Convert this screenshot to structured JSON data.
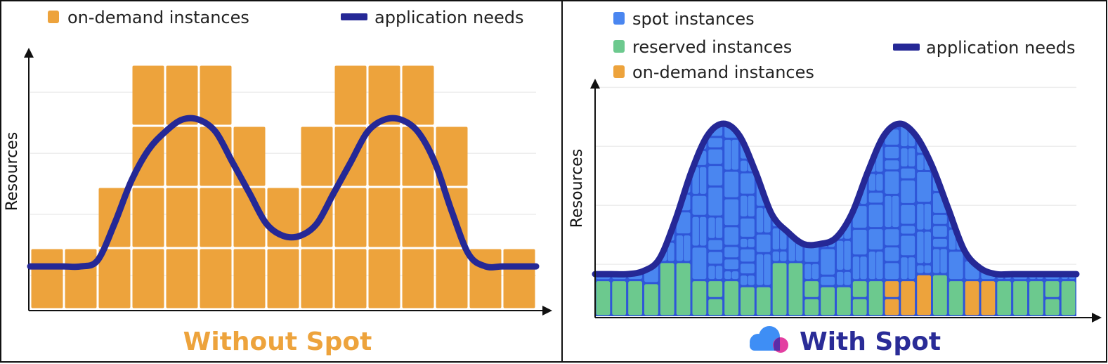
{
  "colors": {
    "on_demand": "#EDA33C",
    "spot": "#4A86F0",
    "spot_dark": "#2F56D8",
    "reserved": "#6CC98E",
    "need_line": "#252896",
    "caption_left": "#EDA33C",
    "caption_right": "#2A2C97",
    "logo_blue": "#3E8EF5",
    "logo_pink": "#E2359C",
    "logo_purple": "#5A2DA8"
  },
  "icons": {
    "spot_logo": "cloud-logo-icon"
  },
  "chart_data": [
    {
      "type": "bar",
      "caption": "Without Spot",
      "ylabel": "Resources",
      "xlabel": "",
      "grid": true,
      "legend_position": "top",
      "legend": [
        {
          "name": "on-demand instances",
          "kind": "swatch",
          "color_key": "on_demand"
        },
        {
          "name": "application needs",
          "kind": "line",
          "color_key": "need_line"
        }
      ],
      "ylim": [
        0,
        4
      ],
      "xlim": [
        0,
        15
      ],
      "series": [
        {
          "name": "on-demand instances",
          "type": "stacked-units",
          "values": [
            1,
            1,
            2,
            4,
            4,
            4,
            3,
            2,
            3,
            4,
            4,
            4,
            3,
            1,
            1
          ]
        },
        {
          "name": "application needs",
          "type": "line",
          "x": [
            0,
            0.5,
            1,
            1.5,
            2,
            2.5,
            3,
            3.5,
            4,
            4.5,
            5,
            5.5,
            6,
            6.5,
            7,
            7.5,
            8,
            8.5,
            9,
            9.5,
            10,
            10.5,
            11,
            11.5,
            12,
            12.5,
            13,
            13.5,
            14,
            14.5,
            15
          ],
          "values": [
            0.7,
            0.7,
            0.7,
            0.7,
            0.8,
            1.4,
            2.1,
            2.6,
            2.9,
            3.1,
            3.1,
            2.9,
            2.4,
            1.9,
            1.4,
            1.2,
            1.2,
            1.4,
            1.9,
            2.4,
            2.9,
            3.1,
            3.1,
            2.9,
            2.4,
            1.6,
            0.9,
            0.7,
            0.7,
            0.7,
            0.7
          ]
        }
      ]
    },
    {
      "type": "area",
      "caption": "With Spot",
      "ylabel": "Resources",
      "xlabel": "",
      "grid": true,
      "legend_position": "top",
      "legend": [
        {
          "name": "spot instances",
          "kind": "swatch",
          "color_key": "spot"
        },
        {
          "name": "reserved instances",
          "kind": "swatch",
          "color_key": "reserved"
        },
        {
          "name": "on-demand instances",
          "kind": "swatch",
          "color_key": "on_demand"
        },
        {
          "name": "application needs",
          "kind": "line",
          "color_key": "need_line"
        }
      ],
      "ylim": [
        0,
        4.2
      ],
      "xlim": [
        0,
        30
      ],
      "series": [
        {
          "name": "application needs",
          "type": "line",
          "x": [
            0,
            1,
            2,
            3,
            4,
            5,
            6,
            7,
            8,
            9,
            10,
            11,
            12,
            13,
            14,
            15,
            16,
            17,
            18,
            19,
            20,
            21,
            22,
            23,
            24,
            25,
            26,
            27,
            28,
            29,
            30
          ],
          "values": [
            0.7,
            0.7,
            0.7,
            0.75,
            0.95,
            1.6,
            2.4,
            3.0,
            3.2,
            3.0,
            2.4,
            1.7,
            1.4,
            1.2,
            1.2,
            1.3,
            1.7,
            2.4,
            3.0,
            3.2,
            3.0,
            2.5,
            1.8,
            1.1,
            0.8,
            0.7,
            0.7,
            0.7,
            0.7,
            0.7,
            0.7
          ]
        },
        {
          "name": "reserved instances",
          "type": "base-band",
          "values": [
            0.6,
            0.6,
            0.6,
            0.55,
            0.9,
            0.9,
            0.6,
            0.6,
            0.6,
            0.5,
            0.5,
            0.9,
            0.9,
            0.6,
            0.5,
            0.5,
            0.6,
            0.6,
            0.6,
            0.6,
            0.7,
            0.7,
            0.6,
            0.6,
            0.6,
            0.6,
            0.6,
            0.6,
            0.6,
            0.6
          ]
        },
        {
          "name": "on-demand instances",
          "type": "cells",
          "x_ranges": [
            [
              18,
              21
            ],
            [
              23,
              24.5
            ]
          ]
        }
      ]
    }
  ]
}
